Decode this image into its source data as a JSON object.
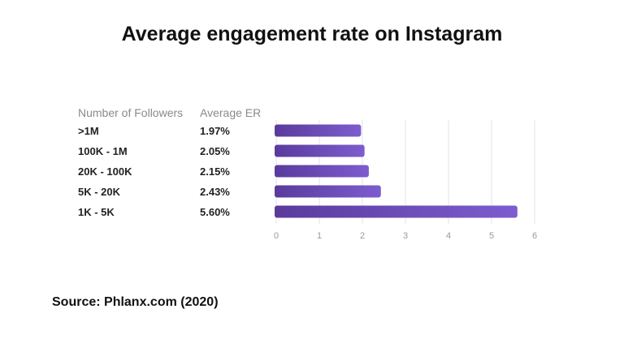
{
  "title": "Average engagement rate on Instagram",
  "source": "Source: Phlanx.com (2020)",
  "chart_data": {
    "type": "bar",
    "orientation": "horizontal",
    "column_headers": [
      "Number of Followers",
      "Average ER"
    ],
    "categories": [
      ">1M",
      "100K - 1M",
      "20K - 100K",
      "5K - 20K",
      "1K - 5K"
    ],
    "values": [
      1.97,
      2.05,
      2.15,
      2.43,
      5.6
    ],
    "value_labels": [
      "1.97%",
      "2.05%",
      "2.15%",
      "2.43%",
      "5.60%"
    ],
    "x_ticks": [
      "0",
      "1",
      "2",
      "3",
      "4",
      "5",
      "6"
    ],
    "xlim": [
      0,
      6
    ],
    "grid": true,
    "colors": {
      "bar_start": "#5a3b9c",
      "bar_end": "#7d5ccf",
      "grid": "#e3e3e3"
    }
  }
}
